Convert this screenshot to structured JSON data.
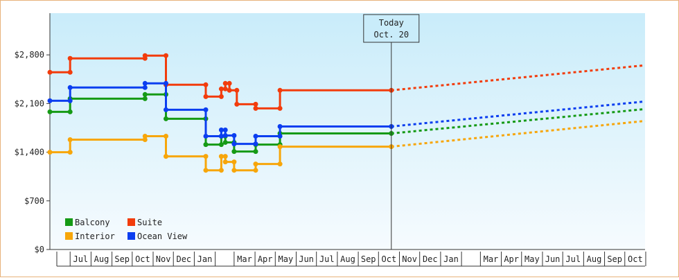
{
  "chart_data": {
    "type": "line",
    "style": "step",
    "y_ticks": [
      "$0",
      "$700",
      "$1,400",
      "$2,100",
      "$2,800"
    ],
    "ylim": [
      0,
      3400
    ],
    "x_axis_labels": [
      {
        "label": "Jul",
        "x": "2021-07"
      },
      {
        "label": "Aug",
        "x": "2021-08"
      },
      {
        "label": "Sep",
        "x": "2021-09"
      },
      {
        "label": "Oct",
        "x": "2021-10"
      },
      {
        "label": "Nov",
        "x": "2021-11"
      },
      {
        "label": "Dec",
        "x": "2021-12"
      },
      {
        "label": "Jan",
        "x": "2022-01"
      },
      {
        "label": "Mar",
        "x": "2022-03"
      },
      {
        "label": "Apr",
        "x": "2022-04"
      },
      {
        "label": "May",
        "x": "2022-05"
      },
      {
        "label": "Jun",
        "x": "2022-06"
      },
      {
        "label": "Jul",
        "x": "2022-07"
      },
      {
        "label": "Aug",
        "x": "2022-08"
      },
      {
        "label": "Sep",
        "x": "2022-09"
      },
      {
        "label": "Oct",
        "x": "2022-10"
      },
      {
        "label": "Nov",
        "x": "2022-11"
      },
      {
        "label": "Dec",
        "x": "2022-12"
      },
      {
        "label": "Jan",
        "x": "2023-01"
      },
      {
        "label": "Mar",
        "x": "2023-03"
      },
      {
        "label": "Apr",
        "x": "2023-04"
      },
      {
        "label": "May",
        "x": "2023-05"
      },
      {
        "label": "Jun",
        "x": "2023-06"
      },
      {
        "label": "Jul",
        "x": "2023-07"
      },
      {
        "label": "Aug",
        "x": "2023-08"
      },
      {
        "label": "Sep",
        "x": "2023-09"
      },
      {
        "label": "Oct",
        "x": "2023-10"
      }
    ],
    "x_range": [
      "2021-06-01",
      "2023-10-31"
    ],
    "today": {
      "line1": "Today",
      "line2": "Oct. 20",
      "date": "2022-10-20"
    },
    "legend": [
      {
        "name": "Balcony",
        "color": "#159a15"
      },
      {
        "name": "Suite",
        "color": "#f23c0c"
      },
      {
        "name": "Interior",
        "color": "#f7a60a"
      },
      {
        "name": "Ocean View",
        "color": "#0b3ef0"
      }
    ],
    "series": [
      {
        "name": "Balcony",
        "color": "#159a15",
        "points": [
          [
            "2021-06-01",
            1980
          ],
          [
            "2021-07-01",
            1980
          ],
          [
            "2021-07-01",
            2170
          ],
          [
            "2021-10-20",
            2170
          ],
          [
            "2021-10-20",
            2230
          ],
          [
            "2021-11-20",
            2230
          ],
          [
            "2021-11-20",
            1880
          ],
          [
            "2022-01-18",
            1880
          ],
          [
            "2022-01-18",
            1510
          ],
          [
            "2022-02-10",
            1510
          ],
          [
            "2022-02-10",
            1630
          ],
          [
            "2022-02-16",
            1630
          ],
          [
            "2022-02-16",
            1540
          ],
          [
            "2022-03-01",
            1540
          ],
          [
            "2022-03-01",
            1410
          ],
          [
            "2022-04-02",
            1410
          ],
          [
            "2022-04-02",
            1510
          ],
          [
            "2022-05-08",
            1510
          ],
          [
            "2022-05-08",
            1670
          ],
          [
            "2022-10-20",
            1670
          ]
        ],
        "projection": [
          [
            "2022-10-20",
            1670
          ],
          [
            "2023-10-31",
            2020
          ]
        ]
      },
      {
        "name": "Suite",
        "color": "#f23c0c",
        "points": [
          [
            "2021-06-01",
            2550
          ],
          [
            "2021-07-01",
            2550
          ],
          [
            "2021-07-01",
            2750
          ],
          [
            "2021-10-20",
            2750
          ],
          [
            "2021-10-20",
            2790
          ],
          [
            "2021-11-20",
            2790
          ],
          [
            "2021-11-20",
            2370
          ],
          [
            "2022-01-18",
            2370
          ],
          [
            "2022-01-18",
            2200
          ],
          [
            "2022-02-10",
            2200
          ],
          [
            "2022-02-10",
            2310
          ],
          [
            "2022-02-16",
            2310
          ],
          [
            "2022-02-16",
            2390
          ],
          [
            "2022-02-22",
            2390
          ],
          [
            "2022-02-22",
            2290
          ],
          [
            "2022-03-05",
            2290
          ],
          [
            "2022-03-05",
            2090
          ],
          [
            "2022-04-02",
            2090
          ],
          [
            "2022-04-02",
            2030
          ],
          [
            "2022-05-08",
            2030
          ],
          [
            "2022-05-08",
            2290
          ],
          [
            "2022-10-20",
            2290
          ]
        ],
        "projection": [
          [
            "2022-10-20",
            2290
          ],
          [
            "2023-10-31",
            2650
          ]
        ]
      },
      {
        "name": "Interior",
        "color": "#f7a60a",
        "points": [
          [
            "2021-06-01",
            1400
          ],
          [
            "2021-07-01",
            1400
          ],
          [
            "2021-07-01",
            1580
          ],
          [
            "2021-10-20",
            1580
          ],
          [
            "2021-10-20",
            1630
          ],
          [
            "2021-11-20",
            1630
          ],
          [
            "2021-11-20",
            1340
          ],
          [
            "2022-01-18",
            1340
          ],
          [
            "2022-01-18",
            1140
          ],
          [
            "2022-02-10",
            1140
          ],
          [
            "2022-02-10",
            1340
          ],
          [
            "2022-02-16",
            1340
          ],
          [
            "2022-02-16",
            1260
          ],
          [
            "2022-03-01",
            1260
          ],
          [
            "2022-03-01",
            1140
          ],
          [
            "2022-04-02",
            1140
          ],
          [
            "2022-04-02",
            1230
          ],
          [
            "2022-05-08",
            1230
          ],
          [
            "2022-05-08",
            1480
          ],
          [
            "2022-10-20",
            1480
          ]
        ],
        "projection": [
          [
            "2022-10-20",
            1480
          ],
          [
            "2023-10-31",
            1850
          ]
        ]
      },
      {
        "name": "Ocean View",
        "color": "#0b3ef0",
        "points": [
          [
            "2021-06-01",
            2140
          ],
          [
            "2021-07-01",
            2140
          ],
          [
            "2021-07-01",
            2330
          ],
          [
            "2021-10-20",
            2330
          ],
          [
            "2021-10-20",
            2390
          ],
          [
            "2021-11-20",
            2390
          ],
          [
            "2021-11-20",
            2010
          ],
          [
            "2022-01-18",
            2010
          ],
          [
            "2022-01-18",
            1630
          ],
          [
            "2022-02-10",
            1630
          ],
          [
            "2022-02-10",
            1720
          ],
          [
            "2022-02-16",
            1720
          ],
          [
            "2022-02-16",
            1640
          ],
          [
            "2022-03-01",
            1640
          ],
          [
            "2022-03-01",
            1520
          ],
          [
            "2022-04-02",
            1520
          ],
          [
            "2022-04-02",
            1630
          ],
          [
            "2022-05-08",
            1630
          ],
          [
            "2022-05-08",
            1770
          ],
          [
            "2022-10-20",
            1770
          ]
        ],
        "projection": [
          [
            "2022-10-20",
            1770
          ],
          [
            "2023-10-31",
            2130
          ]
        ]
      }
    ]
  }
}
